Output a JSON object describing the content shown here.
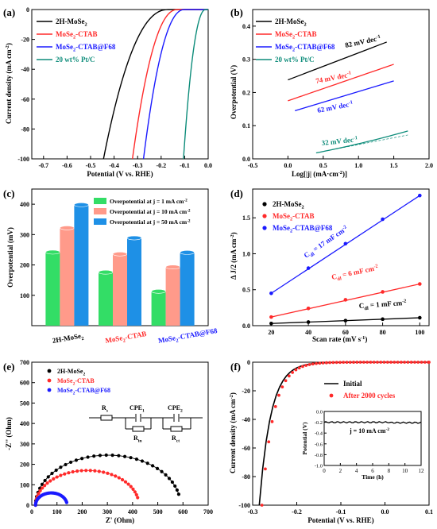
{
  "figure": {
    "panels": [
      "(a)",
      "(b)",
      "(c)",
      "(d)",
      "(e)",
      "(f)"
    ]
  },
  "legend_names": {
    "mose2": "2H-MoSe",
    "ctab": "MoSe",
    "ctab_sub": "2",
    "ctab_rest": "-CTAB",
    "f68_rest": "-CTAB@F68",
    "ptc": "20 wt% Pt/C",
    "sub2": "2"
  },
  "colors": {
    "black": "#000000",
    "red": "#ff2a2a",
    "blue": "#1a1aff",
    "teal": "#0d8c7a",
    "green": "#33dd66",
    "salmon": "#ff9a8a",
    "sky": "#1e90e6"
  },
  "chart_data": [
    {
      "type": "line",
      "panel": "(a)",
      "xlabel": "Potential (V vs. RHE)",
      "ylabel": "Current density (mA cm-2)",
      "xlim": [
        -0.75,
        0.0
      ],
      "ylim": [
        -100,
        0
      ],
      "xticks": [
        "-0.7",
        "-0.6",
        "-0.5",
        "-0.4",
        "-0.3",
        "-0.2",
        "-0.1",
        "0.0"
      ],
      "yticks": [
        "-100",
        "-80",
        "-60",
        "-40",
        "-20",
        "0"
      ],
      "series": [
        {
          "name": "2H-MoSe2",
          "onset": -0.17,
          "end": -0.445,
          "color": "black"
        },
        {
          "name": "MoSe2-CTAB",
          "onset": -0.13,
          "end": -0.322,
          "color": "red"
        },
        {
          "name": "MoSe2-CTAB@F68",
          "onset": -0.1,
          "end": -0.275,
          "color": "blue"
        },
        {
          "name": "20 wt% Pt/C",
          "onset": -0.01,
          "end": -0.105,
          "color": "teal"
        }
      ]
    },
    {
      "type": "line",
      "panel": "(b)",
      "xlabel": "Log[|j| (mA·cm-2)]",
      "ylabel": "Overpotential (V)",
      "xlim": [
        -0.5,
        2.0
      ],
      "ylim": [
        0.0,
        0.45
      ],
      "xticks": [
        "-0.5",
        "0.0",
        "0.5",
        "1.0",
        "1.5",
        "2.0"
      ],
      "yticks": [
        "0.0",
        "0.1",
        "0.2",
        "0.3",
        "0.4"
      ],
      "series": [
        {
          "name": "2H-MoSe2",
          "x": [
            0.0,
            1.4
          ],
          "y": [
            0.238,
            0.352
          ],
          "color": "black",
          "slope_label": "82 mV dec-1"
        },
        {
          "name": "MoSe2-CTAB",
          "x": [
            0.0,
            1.5
          ],
          "y": [
            0.175,
            0.285
          ],
          "color": "red",
          "slope_label": "74 mV dec-1"
        },
        {
          "name": "MoSe2-CTAB@F68",
          "x": [
            0.1,
            1.5
          ],
          "y": [
            0.145,
            0.235
          ],
          "color": "blue",
          "slope_label": "62 mV dec-1"
        },
        {
          "name": "20 wt% Pt/C",
          "x": [
            0.4,
            1.7
          ],
          "y": [
            0.018,
            0.072
          ],
          "color": "teal",
          "slope_label": "32 mV dec-1"
        }
      ]
    },
    {
      "type": "bar",
      "panel": "(c)",
      "ylabel": "Overpotential (mV)",
      "ylim": [
        0,
        450
      ],
      "yticks": [
        "100",
        "200",
        "300",
        "400"
      ],
      "categories": [
        "2H-MoSe2",
        "MoSe2-CTAB",
        "MoSe2-CTAB@F68"
      ],
      "series": [
        {
          "name": "Overpotential at j = 1 mA cm-2",
          "values": [
            242,
            176,
            113
          ],
          "color": "green"
        },
        {
          "name": "Overpotential at j = 10 mA cm-2",
          "values": [
            322,
            236,
            193
          ],
          "color": "salmon"
        },
        {
          "name": "Overpotential at j = 50 mA cm-2",
          "values": [
            398,
            289,
            241
          ],
          "color": "sky"
        }
      ]
    },
    {
      "type": "scatter",
      "panel": "(d)",
      "xlabel": "Scan rate (mV s-1)",
      "ylabel": "Δ J/2 (mA cm-2)",
      "xlim": [
        10,
        105
      ],
      "ylim": [
        0,
        1.9
      ],
      "xticks": [
        "20",
        "40",
        "60",
        "80",
        "100"
      ],
      "yticks": [
        "0.0",
        "0.5",
        "1.0",
        "1.5"
      ],
      "x": [
        20,
        40,
        60,
        80,
        100
      ],
      "series": [
        {
          "name": "2H-MoSe2",
          "y": [
            0.03,
            0.05,
            0.07,
            0.09,
            0.11
          ],
          "color": "black",
          "cdl": "Cdl = 1 mF cm-2"
        },
        {
          "name": "MoSe2-CTAB",
          "y": [
            0.12,
            0.24,
            0.36,
            0.47,
            0.58
          ],
          "color": "red",
          "cdl": "Cdl = 6 mF cm-2"
        },
        {
          "name": "MoSe2-CTAB@F68",
          "y": [
            0.45,
            0.8,
            1.14,
            1.48,
            1.81
          ],
          "color": "blue",
          "cdl": "Cdl = 17 mF cm-2"
        }
      ]
    },
    {
      "type": "scatter",
      "panel": "(e)",
      "xlabel": "Z' (Ohm)",
      "ylabel": "-Z'' (Ohm)",
      "xlim": [
        0,
        700
      ],
      "ylim": [
        0,
        700
      ],
      "xticks": [
        "0",
        "100",
        "200",
        "300",
        "400",
        "500",
        "600",
        "700"
      ],
      "yticks": [
        "0",
        "100",
        "200",
        "300",
        "400",
        "500",
        "600",
        "700"
      ],
      "series": [
        {
          "name": "2H-MoSe2",
          "start": 15,
          "end": 590,
          "peak": 245,
          "color": "black"
        },
        {
          "name": "MoSe2-CTAB",
          "start": 15,
          "end": 425,
          "peak": 170,
          "color": "red"
        },
        {
          "name": "MoSe2-CTAB@F68",
          "start": 15,
          "end": 140,
          "peak": 60,
          "color": "blue"
        }
      ],
      "circuit": {
        "rs": "Rs",
        "cpe1": "CPE1",
        "cpe2": "CPE2",
        "rin": "Rin",
        "rct": "Rct"
      }
    },
    {
      "type": "line",
      "panel": "(f)",
      "xlabel": "Potential (V vs. RHE)",
      "ylabel": "Current density (mA cm-2)",
      "xlim": [
        -0.3,
        0.1
      ],
      "ylim": [
        -100,
        0
      ],
      "xticks": [
        "-0.3",
        "-0.2",
        "-0.1",
        "0.0",
        "0.1"
      ],
      "yticks": [
        "-100",
        "-80",
        "-60",
        "-40",
        "-20",
        "0"
      ],
      "series": [
        {
          "name": "Initial",
          "color": "black"
        },
        {
          "name": "After 2000 cycles",
          "color": "red"
        }
      ],
      "inset": {
        "xlabel": "Time (h)",
        "ylabel": "Potential (V)",
        "xticks": [
          "0",
          "2",
          "4",
          "6",
          "8",
          "10",
          "12"
        ],
        "yticks": [
          "-1.0",
          "-0.8",
          "-0.6",
          "-0.4",
          "-0.2",
          "0.0"
        ],
        "annotation": "j = 10 mA cm-2",
        "level": -0.2
      }
    }
  ]
}
